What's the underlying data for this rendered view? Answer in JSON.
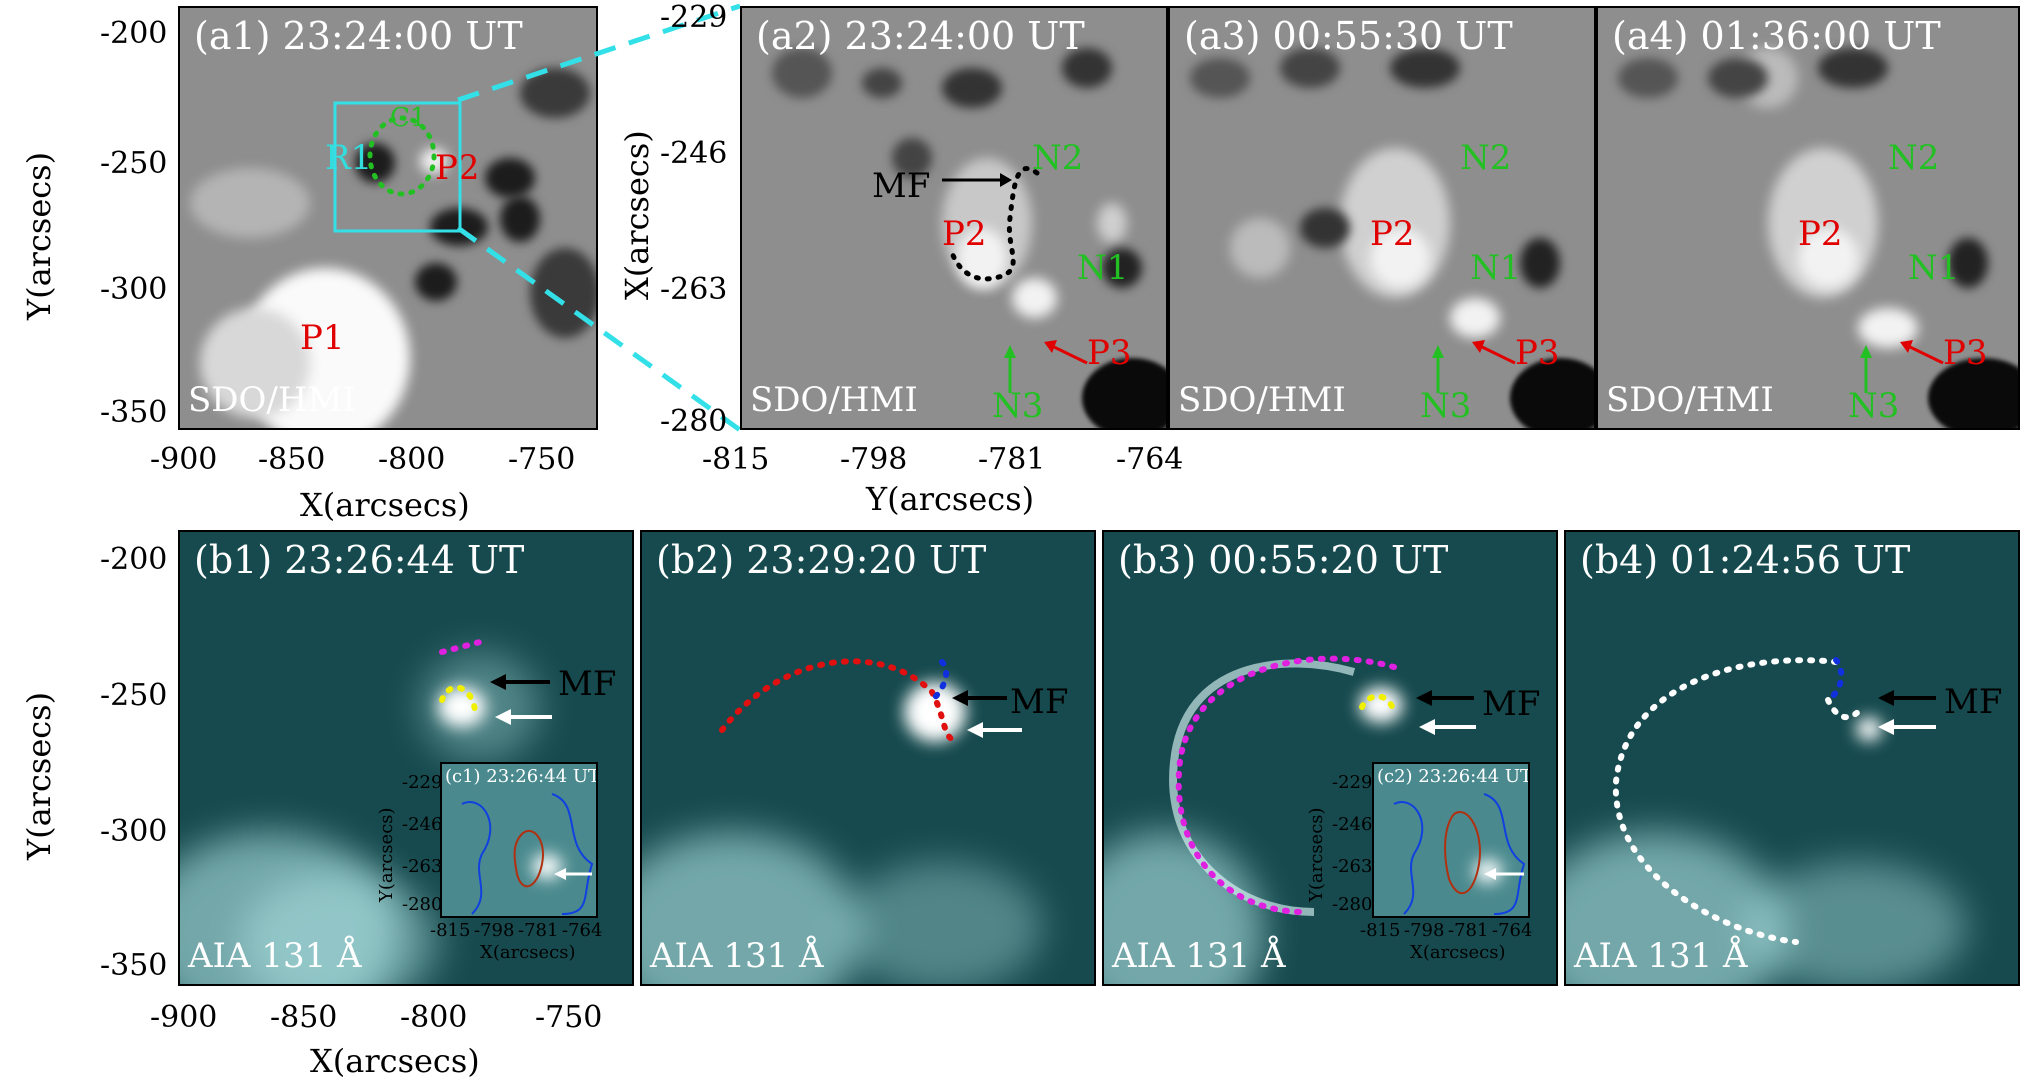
{
  "top_row": {
    "a1": {
      "title": "(a1) 23:24:00 UT",
      "instrument": "SDO/HMI",
      "region_label": "R1",
      "contour_label": "C1",
      "p1": "P1",
      "p2": "P2"
    },
    "a2": {
      "title": "(a2) 23:24:00 UT",
      "instrument": "SDO/HMI",
      "mf": "MF",
      "p2": "P2",
      "p3": "P3",
      "n1": "N1",
      "n2": "N2",
      "n3": "N3"
    },
    "a3": {
      "title": "(a3) 00:55:30 UT",
      "instrument": "SDO/HMI",
      "p2": "P2",
      "p3": "P3",
      "n1": "N1",
      "n2": "N2",
      "n3": "N3"
    },
    "a4": {
      "title": "(a4) 01:36:00 UT",
      "instrument": "SDO/HMI",
      "p2": "P2",
      "p3": "P3",
      "n1": "N1",
      "n2": "N2",
      "n3": "N3"
    }
  },
  "bottom_row": {
    "b1": {
      "title": "(b1) 23:26:44 UT",
      "instrument": "AIA 131 Å",
      "mf": "MF"
    },
    "b2": {
      "title": "(b2) 23:29:20 UT",
      "instrument": "AIA 131 Å",
      "mf": "MF"
    },
    "b3": {
      "title": "(b3) 00:55:20 UT",
      "instrument": "AIA 131 Å",
      "mf": "MF"
    },
    "b4": {
      "title": "(b4) 01:24:56 UT",
      "instrument": "AIA 131 Å",
      "mf": "MF"
    }
  },
  "insets": {
    "c1": {
      "title": "(c1) 23:26:44 UT",
      "ylabel": "Y(arcsecs)",
      "xlabel": "X(arcsecs)",
      "yticks": [
        "-229",
        "-246",
        "-263",
        "-280"
      ],
      "xticks": [
        "-815",
        "-798",
        "-781",
        "-764"
      ]
    },
    "c2": {
      "title": "(c2) 23:26:44 UT",
      "ylabel": "Y(arcsecs)",
      "xlabel": "X(arcsecs)",
      "yticks": [
        "-229",
        "-246",
        "-263",
        "-280"
      ],
      "xticks": [
        "-815",
        "-798",
        "-781",
        "-764"
      ]
    }
  },
  "axes": {
    "a1": {
      "yticks": [
        "-200",
        "-250",
        "-300",
        "-350"
      ],
      "xticks": [
        "-900",
        "-850",
        "-800",
        "-750"
      ],
      "xlabel": "X(arcsecs)",
      "ylabel": "Y(arcsecs)"
    },
    "a2": {
      "yticks": [
        "-229",
        "-246",
        "-263",
        "-280"
      ],
      "xticks": [
        "-815",
        "-798",
        "-781",
        "-764"
      ],
      "xlabel": "Y(arcsecs)",
      "ylabel": "X(arcsecs)"
    },
    "b1": {
      "yticks": [
        "-200",
        "-250",
        "-300",
        "-350"
      ],
      "xticks": [
        "-900",
        "-850",
        "-800",
        "-750"
      ],
      "xlabel": "X(arcsecs)",
      "ylabel": "Y(arcsecs)"
    }
  },
  "colors": {
    "magenta": "#e020e0",
    "blue": "#1030e0",
    "yellow": "#f0f000",
    "red": "#e01010",
    "cyan": "#33e0e8",
    "green": "#22c022"
  }
}
